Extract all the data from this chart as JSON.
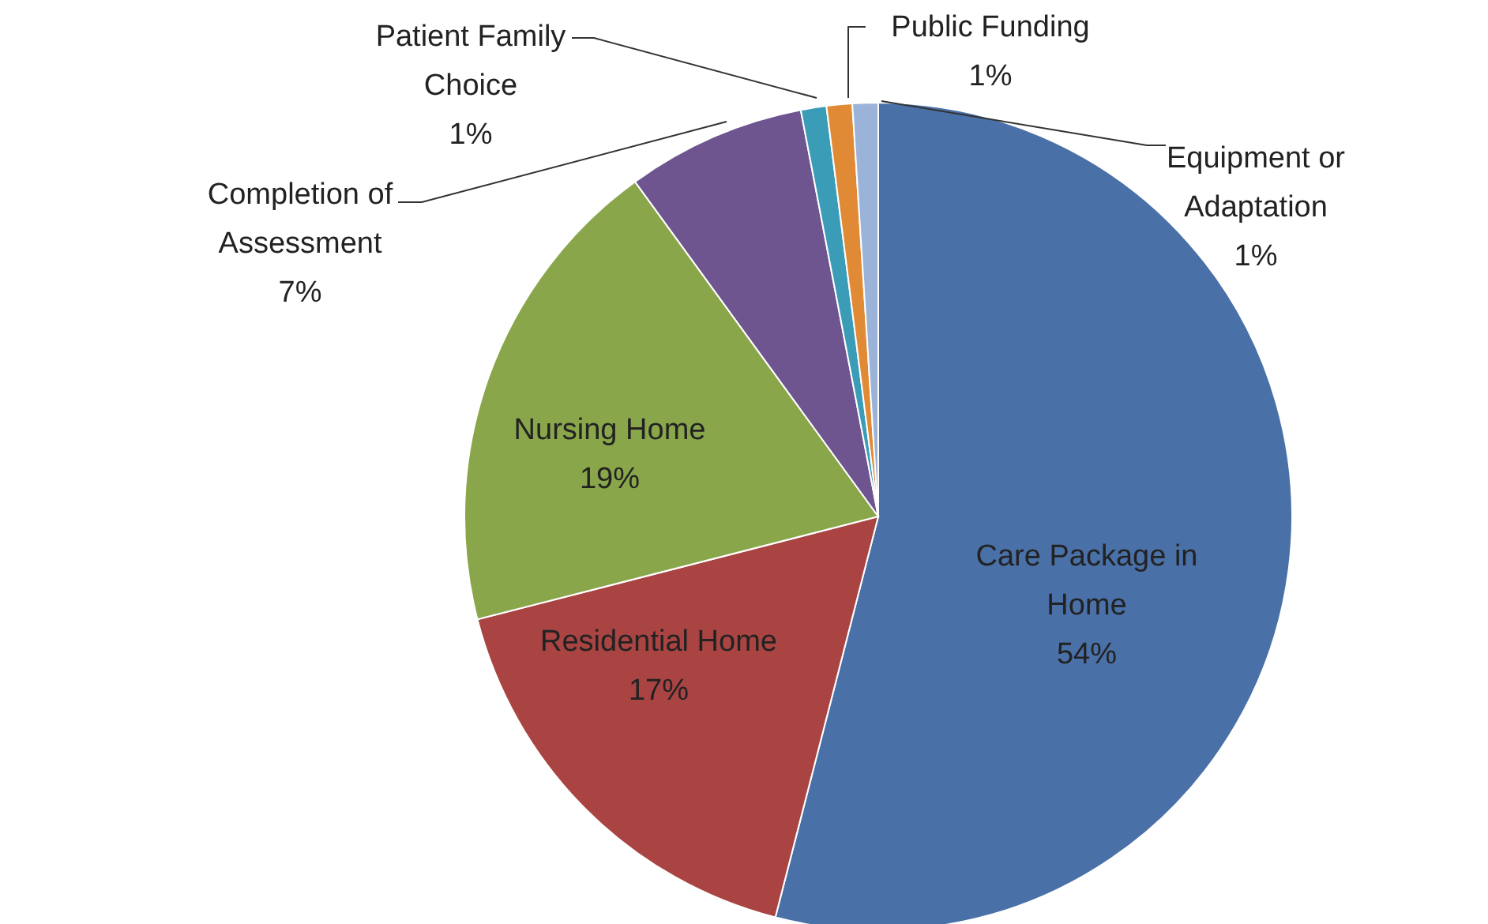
{
  "chart_data": {
    "type": "pie",
    "categories": [
      "Care Package in Home",
      "Residential Home",
      "Nursing Home",
      "Completion of Assessment",
      "Patient Family Choice",
      "Public Funding",
      "Equipment or Adaptation"
    ],
    "values": [
      54,
      17,
      19,
      7,
      1,
      1,
      1
    ],
    "colors": [
      "#4a70a8",
      "#a94442",
      "#8aa64b",
      "#6e5590",
      "#3b9cb8",
      "#e08a35",
      "#9bb3d9"
    ],
    "value_labels": [
      "54%",
      "17%",
      "19%",
      "7%",
      "1%",
      "1%",
      "1%"
    ]
  }
}
